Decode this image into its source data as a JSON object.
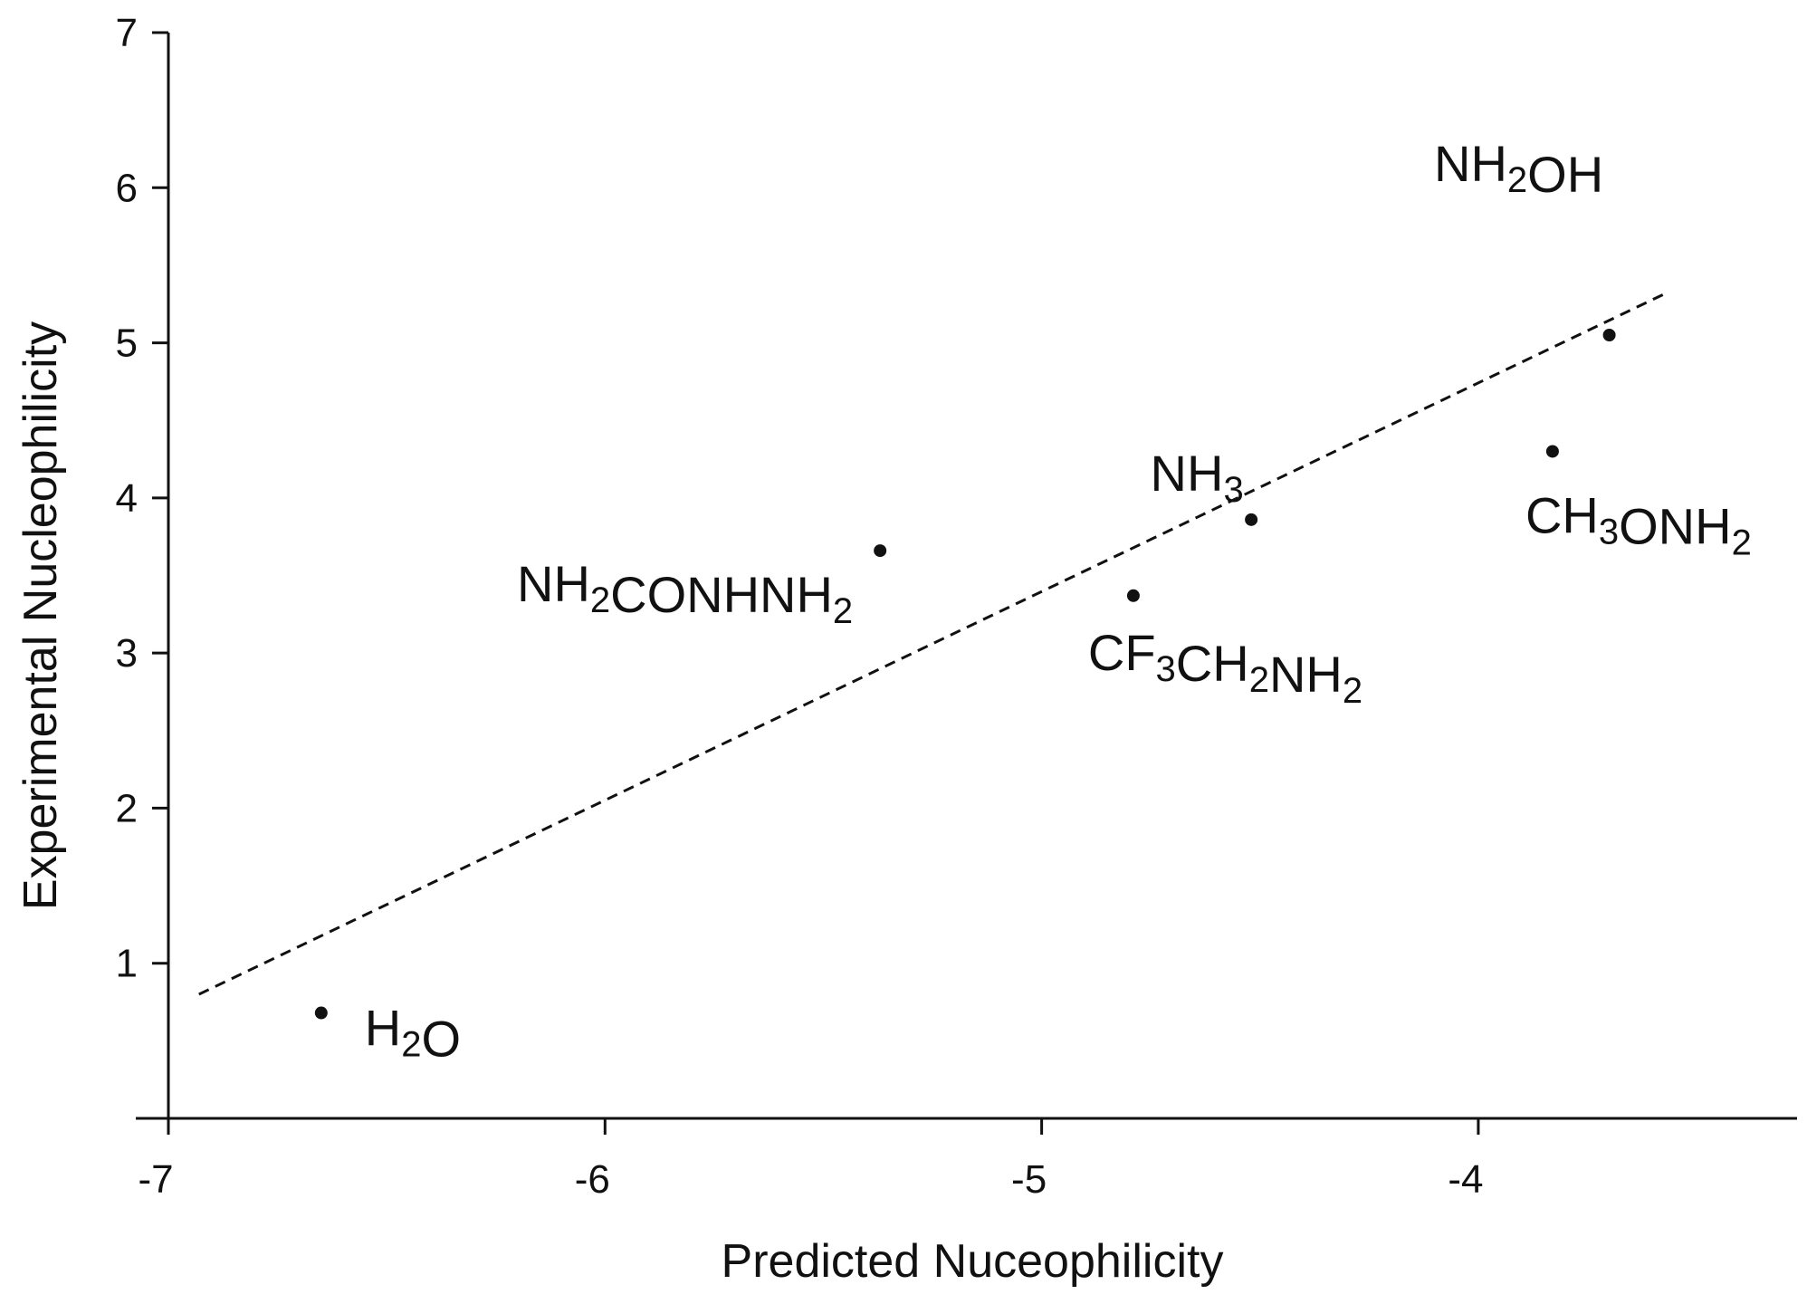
{
  "chart_data": {
    "type": "scatter",
    "title": "",
    "xlabel": "Predicted Nuceophilicity",
    "ylabel": "Experimental Nucleophilicity",
    "xlim": [
      -7,
      -3.27
    ],
    "ylim": [
      0,
      7
    ],
    "xticks": [
      -7,
      -6,
      -5,
      -4
    ],
    "yticks": [
      1,
      2,
      3,
      4,
      5,
      6,
      7
    ],
    "grid": false,
    "points": [
      {
        "x": -6.65,
        "y": 0.68,
        "label": "H2O"
      },
      {
        "x": -5.37,
        "y": 3.66,
        "label": "NH2CONHNH2"
      },
      {
        "x": -4.79,
        "y": 3.37,
        "label": "CF3CH2NH2"
      },
      {
        "x": -4.52,
        "y": 3.86,
        "label": "NH3"
      },
      {
        "x": -3.83,
        "y": 4.3,
        "label": "CH3ONH2"
      },
      {
        "x": -3.7,
        "y": 5.05,
        "label": "NH2OH"
      }
    ],
    "trendline": {
      "style": "dashed",
      "x": [
        -6.93,
        -3.57
      ],
      "y": [
        0.8,
        5.32
      ]
    }
  }
}
